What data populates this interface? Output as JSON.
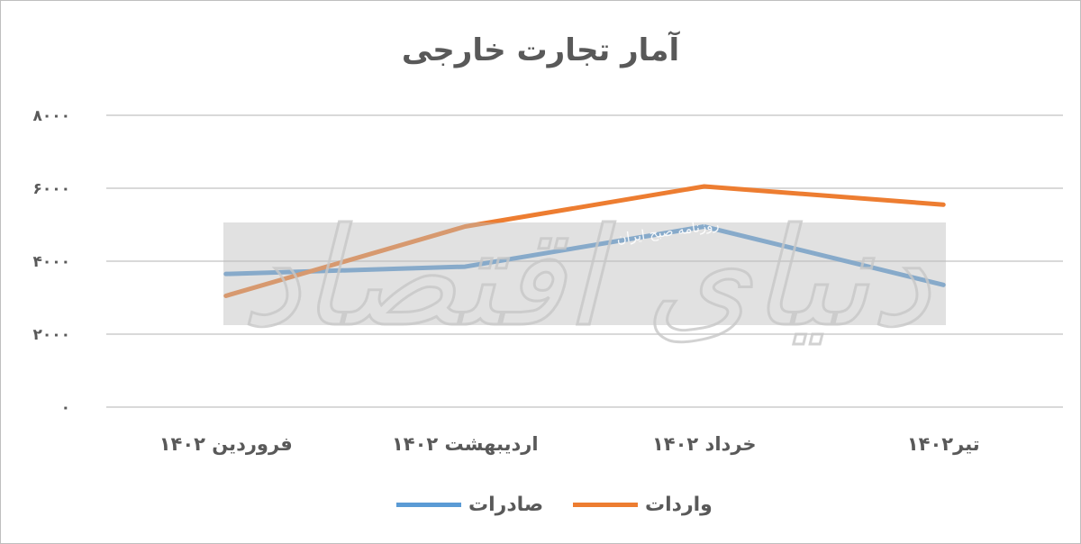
{
  "chart_data": {
    "type": "line",
    "title": "آمار تجارت خارجی",
    "categories": [
      "فروردین ۱۴۰۲",
      "اردیبهشت ۱۴۰۲",
      "خرداد ۱۴۰۲",
      "تیر۱۴۰۲"
    ],
    "series": [
      {
        "name": "صادرات",
        "color": "#5b9bd5",
        "values": [
          3650,
          3850,
          4950,
          3350
        ]
      },
      {
        "name": "واردات",
        "color": "#ed7d31",
        "values": [
          3050,
          4950,
          6050,
          5550
        ]
      }
    ],
    "ylim": [
      0,
      8000
    ],
    "yticks": [
      0,
      2000,
      4000,
      6000,
      8000
    ],
    "ytick_labels": [
      "۰",
      "۲۰۰۰",
      "۴۰۰۰",
      "۶۰۰۰",
      "۸۰۰۰"
    ],
    "grid": true,
    "legend_position": "bottom"
  },
  "watermark": {
    "text": "دنیای اقتصاد",
    "subtext": "روزنامه صبح ایران"
  }
}
